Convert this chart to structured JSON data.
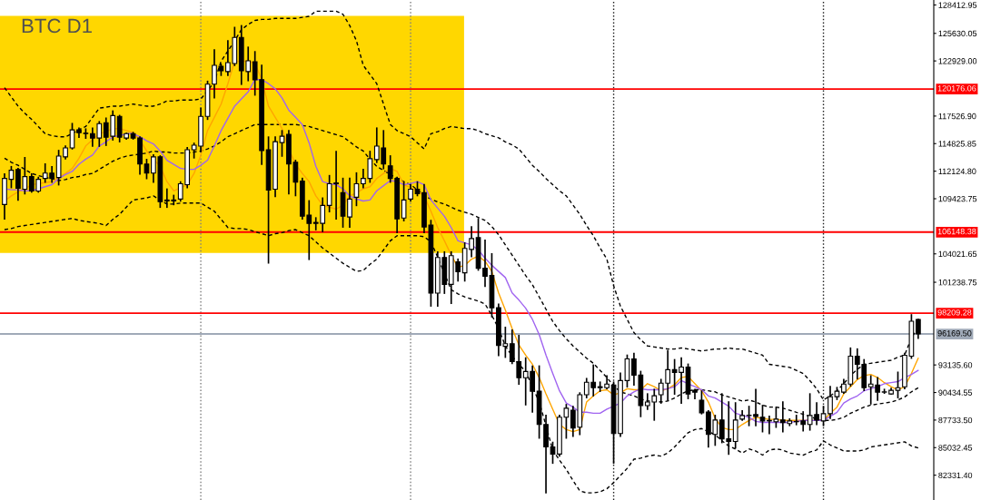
{
  "chart_data": {
    "type": "candlestick",
    "title": "BTC D1",
    "categories": [
      null,
      null,
      null,
      null,
      null,
      null,
      null,
      null,
      null,
      null,
      null,
      null,
      null,
      null,
      null,
      null,
      null,
      null,
      null,
      null,
      null,
      null,
      null,
      null,
      null,
      null,
      null,
      null,
      null,
      null,
      null,
      null,
      null,
      null,
      null,
      null,
      null,
      null,
      null,
      null,
      null,
      null,
      null,
      null,
      null,
      null,
      null,
      null,
      null,
      null,
      null,
      null,
      null,
      null,
      null,
      null,
      null,
      null,
      null,
      null,
      null,
      null,
      null,
      null,
      null,
      null,
      null,
      null,
      null,
      null,
      null,
      null,
      null,
      null,
      null,
      null,
      null,
      null,
      null,
      null,
      null,
      null,
      null,
      null,
      null,
      null,
      null,
      null,
      null,
      null,
      null,
      null,
      null,
      null,
      null,
      null,
      null,
      null,
      null,
      null,
      null,
      null,
      null,
      null,
      null,
      null,
      null,
      null,
      null,
      null,
      null,
      null,
      null,
      null,
      null,
      null,
      null,
      null,
      null,
      null,
      null,
      null,
      null,
      null,
      null,
      null,
      null,
      null,
      null,
      null,
      null,
      null,
      null,
      null,
      null,
      null
    ],
    "ohlc": [
      [
        108860,
        111850,
        107450,
        111410
      ],
      [
        111330,
        112560,
        110530,
        112210
      ],
      [
        112290,
        112380,
        109300,
        110450
      ],
      [
        110360,
        113440,
        109920,
        111590
      ],
      [
        111590,
        111850,
        110090,
        110180
      ],
      [
        110180,
        111500,
        110090,
        111330
      ],
      [
        111410,
        112820,
        111060,
        111940
      ],
      [
        111940,
        112560,
        111060,
        111410
      ],
      [
        111500,
        114140,
        110800,
        113610
      ],
      [
        113530,
        114580,
        113350,
        114410
      ],
      [
        114410,
        116780,
        114320,
        116170
      ],
      [
        116170,
        116340,
        115460,
        115900
      ],
      [
        115850,
        116250,
        115370,
        115810
      ],
      [
        115810,
        116340,
        114580,
        115370
      ],
      [
        115370,
        116960,
        114580,
        116780
      ],
      [
        116870,
        117310,
        114670,
        115460
      ],
      [
        115550,
        118010,
        115200,
        117570
      ],
      [
        117490,
        117570,
        115020,
        115460
      ],
      [
        115370,
        115810,
        115290,
        115810
      ],
      [
        115810,
        115900,
        115290,
        115370
      ],
      [
        115370,
        115460,
        111850,
        112820
      ],
      [
        112820,
        113260,
        111410,
        111940
      ],
      [
        111940,
        113700,
        111060,
        113530
      ],
      [
        113530,
        113610,
        108600,
        109130
      ],
      [
        109300,
        110360,
        108600,
        109210
      ],
      [
        109210,
        109740,
        108860,
        109300
      ],
      [
        109390,
        111060,
        109210,
        110890
      ],
      [
        110800,
        114410,
        110530,
        114230
      ],
      [
        114230,
        114850,
        113440,
        114670
      ],
      [
        114580,
        118280,
        114050,
        117490
      ],
      [
        117490,
        120920,
        117220,
        120650
      ],
      [
        120650,
        124000,
        119330,
        122500
      ],
      [
        122410,
        122590,
        121530,
        121970
      ],
      [
        121890,
        124880,
        121530,
        122770
      ],
      [
        122680,
        126200,
        122500,
        125230
      ],
      [
        125230,
        126370,
        120650,
        121970
      ],
      [
        121890,
        124260,
        121010,
        122940
      ],
      [
        122850,
        123820,
        119600,
        121090
      ],
      [
        121090,
        122500,
        112820,
        114140
      ],
      [
        114230,
        115460,
        103140,
        110270
      ],
      [
        110360,
        115460,
        109650,
        115020
      ],
      [
        114930,
        116080,
        113610,
        115550
      ],
      [
        115730,
        116080,
        109920,
        112820
      ],
      [
        113000,
        113170,
        109740,
        111060
      ],
      [
        111150,
        111410,
        107450,
        107720
      ],
      [
        107810,
        109210,
        103490,
        107010
      ],
      [
        107100,
        107540,
        106400,
        107010
      ],
      [
        107010,
        109480,
        106220,
        108770
      ],
      [
        108770,
        111680,
        108160,
        110890
      ],
      [
        110970,
        114050,
        107450,
        110890
      ],
      [
        110010,
        111410,
        106660,
        107720
      ],
      [
        107630,
        111410,
        106660,
        109390
      ],
      [
        109570,
        111940,
        108770,
        110890
      ],
      [
        110890,
        112290,
        110530,
        111410
      ],
      [
        111410,
        114050,
        111060,
        113350
      ],
      [
        113260,
        116340,
        113000,
        114580
      ],
      [
        114410,
        116080,
        112380,
        112820
      ],
      [
        112650,
        113610,
        111060,
        111410
      ],
      [
        111410,
        111500,
        106130,
        107450
      ],
      [
        107540,
        110970,
        107280,
        109300
      ],
      [
        109390,
        110800,
        109210,
        110360
      ],
      [
        110360,
        111060,
        109740,
        109920
      ],
      [
        110010,
        110800,
        106130,
        106660
      ],
      [
        106840,
        107280,
        98920,
        100170
      ],
      [
        100170,
        104200,
        98920,
        103670
      ],
      [
        103670,
        104200,
        100170,
        101030
      ],
      [
        101030,
        104200,
        99180,
        103850
      ],
      [
        103230,
        103490,
        101380,
        102260
      ],
      [
        102170,
        105080,
        101380,
        104550
      ],
      [
        104460,
        106660,
        103760,
        105520
      ],
      [
        105610,
        107450,
        102440,
        102610
      ],
      [
        102610,
        105340,
        100850,
        101820
      ],
      [
        101910,
        104020,
        97860,
        98740
      ],
      [
        98740,
        99090,
        94080,
        95050
      ],
      [
        94960,
        96810,
        93900,
        95220
      ],
      [
        95220,
        96540,
        93290,
        93460
      ],
      [
        93460,
        96010,
        91260,
        91880
      ],
      [
        91880,
        93810,
        89240,
        92490
      ],
      [
        92490,
        93020,
        88530,
        90560
      ],
      [
        90560,
        93020,
        85980,
        87300
      ],
      [
        87300,
        88180,
        80610,
        85100
      ],
      [
        85100,
        85540,
        83520,
        84400
      ],
      [
        84400,
        88180,
        84220,
        88010
      ],
      [
        88010,
        89240,
        85980,
        88890
      ],
      [
        88710,
        89060,
        86160,
        86950
      ],
      [
        87040,
        90380,
        86330,
        90210
      ],
      [
        90210,
        91790,
        89940,
        91440
      ],
      [
        91440,
        93110,
        90120,
        90910
      ],
      [
        90910,
        91440,
        90560,
        91000
      ],
      [
        90910,
        92050,
        90820,
        91260
      ],
      [
        91170,
        91440,
        83520,
        86420
      ],
      [
        86420,
        92320,
        86160,
        91610
      ],
      [
        91610,
        94080,
        91000,
        93730
      ],
      [
        93730,
        94250,
        91170,
        92140
      ],
      [
        92140,
        92490,
        88090,
        89150
      ],
      [
        89150,
        90290,
        88800,
        89500
      ],
      [
        89500,
        90730,
        87740,
        90120
      ],
      [
        90210,
        91700,
        89410,
        91350
      ],
      [
        91350,
        94520,
        89680,
        92670
      ],
      [
        92670,
        93640,
        90290,
        92410
      ],
      [
        92410,
        93810,
        89410,
        92930
      ],
      [
        92930,
        93200,
        89850,
        90290
      ],
      [
        90650,
        90730,
        89850,
        90470
      ],
      [
        89680,
        90560,
        88360,
        88450
      ],
      [
        88530,
        88620,
        85100,
        86330
      ],
      [
        86330,
        88180,
        85280,
        87740
      ],
      [
        87740,
        90290,
        85540,
        85890
      ],
      [
        85890,
        89500,
        84400,
        85630
      ],
      [
        85630,
        89410,
        85010,
        87740
      ],
      [
        87830,
        88620,
        87740,
        88180
      ],
      [
        88200,
        89060,
        87210,
        88180
      ],
      [
        88270,
        90730,
        87210,
        88090
      ],
      [
        88010,
        89150,
        86600,
        87650
      ],
      [
        87650,
        88090,
        86420,
        87700
      ],
      [
        87570,
        88970,
        87040,
        87830
      ],
      [
        87740,
        89500,
        86600,
        87480
      ],
      [
        87390,
        87830,
        87210,
        87650
      ],
      [
        87570,
        88180,
        87300,
        87600
      ],
      [
        87650,
        88530,
        86690,
        87300
      ],
      [
        87300,
        90290,
        86770,
        88180
      ],
      [
        88270,
        89410,
        87300,
        87740
      ],
      [
        87650,
        89060,
        87210,
        88360
      ],
      [
        88360,
        91000,
        87920,
        90030
      ],
      [
        90030,
        90910,
        89770,
        90560
      ],
      [
        90470,
        91700,
        90380,
        91260
      ],
      [
        91260,
        94780,
        91090,
        93990
      ],
      [
        93990,
        94690,
        91790,
        93200
      ],
      [
        93200,
        93640,
        90650,
        90910
      ],
      [
        91000,
        92050,
        89330,
        91260
      ],
      [
        91170,
        91880,
        89680,
        90470
      ],
      [
        90470,
        90730,
        90380,
        90500
      ],
      [
        90290,
        90820,
        90290,
        90650
      ],
      [
        90650,
        92410,
        89940,
        90910
      ],
      [
        91000,
        94250,
        90820,
        94080
      ],
      [
        93990,
        98040,
        93810,
        97420
      ],
      [
        97600,
        97600,
        95750,
        96169.5
      ]
    ],
    "series": [
      {
        "type": "line",
        "color": "#ffa500",
        "values": [
          109200,
          109700,
          110100,
          110400,
          110800,
          110900,
          111000,
          111100,
          111500,
          111900,
          112400,
          113400,
          114600,
          115200,
          115800,
          116000,
          116300,
          116300,
          116100,
          115900,
          115200,
          114100,
          113300,
          112600,
          111100,
          110200,
          110500,
          110800,
          111900,
          113700,
          116100,
          117400,
          118700,
          120700,
          122900,
          122900,
          122900,
          122700,
          121100,
          118500,
          117400,
          116300,
          114300,
          112800,
          111900,
          111100,
          109700,
          108800,
          108600,
          108400,
          108800,
          109700,
          110000,
          110400,
          110600,
          111400,
          111900,
          112400,
          112100,
          110800,
          110500,
          110200,
          109700,
          108200,
          106600,
          105300,
          103900,
          102700,
          102900,
          103500,
          103800,
          103300,
          102300,
          100200,
          98500,
          96700,
          95100,
          94100,
          93200,
          91900,
          90300,
          88800,
          87300,
          86800,
          86600,
          86800,
          89500,
          90100,
          90600,
          90700,
          90200,
          90400,
          90800,
          90700,
          90700,
          91300,
          91000,
          90600,
          90800,
          91200,
          91900,
          92000,
          91300,
          90600,
          89500,
          87900,
          87000,
          86800,
          86800,
          87300,
          87700,
          88000,
          87900,
          87800,
          87800,
          87700,
          87700,
          87700,
          87700,
          87700,
          87700,
          87700,
          88400,
          89000,
          90300,
          91000,
          91700,
          92100,
          92200,
          91900,
          91400,
          91000,
          90700,
          91000,
          92300,
          93800
        ]
      },
      {
        "type": "line",
        "color": "#a064f0",
        "values": [
          110400,
          110300,
          110300,
          110200,
          110200,
          110400,
          110600,
          110800,
          111400,
          111800,
          112100,
          112800,
          113300,
          113700,
          114600,
          115000,
          115500,
          115600,
          115800,
          115800,
          115500,
          115100,
          114800,
          114100,
          113200,
          112800,
          112400,
          112300,
          112300,
          112700,
          113200,
          114600,
          116100,
          117300,
          118500,
          119200,
          119900,
          121100,
          121100,
          120700,
          120200,
          119300,
          118100,
          117400,
          116700,
          114900,
          112600,
          111100,
          110900,
          110800,
          110400,
          109700,
          109400,
          109200,
          109300,
          110200,
          110700,
          111200,
          111100,
          110800,
          110900,
          111100,
          110800,
          109300,
          108500,
          107700,
          106600,
          105300,
          105100,
          104900,
          104400,
          103600,
          102900,
          102300,
          101700,
          100200,
          99500,
          98700,
          97600,
          96100,
          94100,
          92300,
          90600,
          89400,
          89000,
          88500,
          88500,
          88400,
          88400,
          88800,
          89100,
          89400,
          90100,
          90500,
          90800,
          90700,
          90700,
          90700,
          90800,
          91000,
          91600,
          91300,
          91000,
          90700,
          90100,
          89900,
          89500,
          89100,
          88400,
          88200,
          88000,
          87600,
          87500,
          87500,
          87500,
          87500,
          87500,
          87600,
          87700,
          87700,
          87700,
          87700,
          88100,
          88500,
          89400,
          89800,
          90100,
          90600,
          90800,
          91000,
          91300,
          91400,
          91500,
          91900,
          92200,
          92600
        ]
      },
      {
        "type": "line",
        "color": "#000000",
        "line_style": "dashed",
        "values": [
          120300,
          119400,
          118500,
          117800,
          117200,
          116500,
          115800,
          115600,
          115500,
          115500,
          115800,
          116200,
          116500,
          117400,
          118300,
          118400,
          118500,
          118500,
          118600,
          118700,
          118600,
          118500,
          118500,
          118700,
          119000,
          119000,
          119100,
          119100,
          119100,
          119200,
          120000,
          120900,
          122900,
          123900,
          124900,
          126000,
          126500,
          126900,
          127000,
          127000,
          127100,
          127100,
          127100,
          127100,
          127200,
          127300,
          127800,
          127800,
          127800,
          127800,
          127500,
          126400,
          124900,
          122500,
          121600,
          120700,
          118700,
          116700,
          116100,
          115800,
          115500,
          114900,
          114300,
          115800,
          116000,
          116300,
          116500,
          116400,
          116300,
          116300,
          116100,
          115800,
          115600,
          115400,
          115000,
          114700,
          114300,
          113500,
          112700,
          112100,
          111400,
          110800,
          110200,
          109700,
          108800,
          107900,
          106800,
          105800,
          104600,
          103500,
          100900,
          98900,
          97600,
          96300,
          95600,
          95000,
          94900,
          94800,
          94700,
          94700,
          94800,
          94700,
          94600,
          94500,
          94600,
          94700,
          94700,
          94800,
          94700,
          94700,
          94500,
          94300,
          94100,
          93200,
          93100,
          93000,
          92900,
          92600,
          92300,
          91600,
          90800,
          89700,
          90100,
          90600,
          91300,
          92100,
          92700,
          93200,
          93300,
          93400,
          93500,
          93600,
          93900,
          94100,
          95800,
          96800
        ]
      },
      {
        "type": "line",
        "color": "#000000",
        "line_style": "dashed",
        "values": [
          113400,
          113000,
          112700,
          112300,
          111900,
          111700,
          111500,
          111400,
          111200,
          111300,
          111500,
          111600,
          111800,
          111900,
          112300,
          112700,
          113100,
          113400,
          113600,
          113700,
          113800,
          113900,
          114100,
          114000,
          114000,
          113900,
          113900,
          113900,
          114000,
          114100,
          114300,
          114600,
          115000,
          115500,
          115800,
          116100,
          116400,
          116700,
          116700,
          116700,
          116700,
          116700,
          116700,
          116700,
          116600,
          116500,
          116300,
          116100,
          115900,
          115700,
          115500,
          115000,
          114500,
          114100,
          113300,
          112600,
          112200,
          111800,
          111400,
          111100,
          110800,
          110300,
          109700,
          109400,
          109100,
          108900,
          108600,
          108300,
          108100,
          107900,
          107600,
          107300,
          106700,
          105900,
          104900,
          103900,
          102900,
          101900,
          101000,
          99800,
          98600,
          97400,
          96500,
          95700,
          95000,
          94400,
          93800,
          93300,
          92600,
          91900,
          91100,
          90500,
          90300,
          90100,
          89800,
          89600,
          89600,
          89500,
          89600,
          89900,
          90300,
          90600,
          90700,
          90700,
          90600,
          90500,
          90200,
          90000,
          89800,
          89600,
          89700,
          89500,
          89200,
          89000,
          89000,
          88900,
          88700,
          88500,
          88300,
          88100,
          87800,
          87700,
          87700,
          87800,
          88000,
          88400,
          88700,
          89000,
          89200,
          89300,
          89400,
          89500,
          89700,
          90000,
          90500,
          90900
        ]
      },
      {
        "type": "line",
        "color": "#000000",
        "line_style": "dashed",
        "values": [
          106400,
          106500,
          106700,
          106800,
          106900,
          107000,
          107100,
          107200,
          107300,
          107400,
          107500,
          107300,
          107200,
          107100,
          107000,
          106800,
          107400,
          107900,
          108600,
          109300,
          109400,
          109500,
          109700,
          109300,
          108900,
          108900,
          109000,
          109000,
          109000,
          109000,
          108600,
          108200,
          107400,
          106600,
          106500,
          106500,
          106400,
          106200,
          106000,
          105800,
          106000,
          106100,
          106300,
          106400,
          106100,
          105800,
          105200,
          104600,
          104100,
          103600,
          103100,
          102700,
          102300,
          102400,
          103000,
          103500,
          104400,
          105300,
          105800,
          105800,
          105800,
          105800,
          105700,
          105200,
          103700,
          102100,
          100500,
          100100,
          99800,
          99600,
          99400,
          99100,
          98000,
          96700,
          95000,
          94000,
          93200,
          92500,
          91000,
          89500,
          87200,
          84800,
          83800,
          82900,
          81800,
          80800,
          80600,
          80600,
          80700,
          81000,
          81600,
          82300,
          83000,
          83900,
          84000,
          84200,
          84300,
          84200,
          84500,
          85100,
          85800,
          86500,
          86800,
          86900,
          86600,
          86300,
          85700,
          85200,
          84900,
          84500,
          84900,
          84700,
          84300,
          84800,
          84900,
          84800,
          84500,
          84400,
          84300,
          84600,
          84800,
          85700,
          85300,
          85000,
          84700,
          84700,
          84700,
          84800,
          85100,
          85200,
          85300,
          85400,
          85500,
          85600,
          85200,
          85000
        ]
      }
    ],
    "ylim": [
      79900,
      128900
    ],
    "yticks": [
      {
        "value": 128412.95,
        "label": "128412.95"
      },
      {
        "value": 125630.05,
        "label": "125630.05"
      },
      {
        "value": 122929.0,
        "label": "122929.00"
      },
      {
        "value": 117526.9,
        "label": "117526.90"
      },
      {
        "value": 114825.85,
        "label": "114825.85"
      },
      {
        "value": 112124.8,
        "label": "112124.80"
      },
      {
        "value": 109423.75,
        "label": "109423.75"
      },
      {
        "value": 104021.65,
        "label": "104021.65"
      },
      {
        "value": 101238.75,
        "label": "101238.75"
      },
      {
        "value": 93135.6,
        "label": "93135.60"
      },
      {
        "value": 90434.55,
        "label": "90434.55"
      },
      {
        "value": 87733.5,
        "label": "87733.50"
      },
      {
        "value": 85032.45,
        "label": "85032.45"
      },
      {
        "value": 82331.4,
        "label": "82331.40"
      }
    ],
    "tick_labels": "y",
    "grid": false,
    "ref_lines": [
      {
        "axis": "y",
        "value": 120176.06,
        "label": "120176.06",
        "color": "#ff0000"
      },
      {
        "axis": "y",
        "value": 106148.38,
        "label": "106148.38",
        "color": "#ff0000"
      },
      {
        "axis": "y",
        "value": 98209.28,
        "label": "98209.28",
        "color": "#ff0000"
      },
      {
        "axis": "y",
        "value": 96169.5,
        "label": "96169.50",
        "color": "#a0aab8"
      }
    ],
    "bands": [
      {
        "axis": "y",
        "from": 104110,
        "to": 127340,
        "color": "#ffd700"
      }
    ]
  }
}
